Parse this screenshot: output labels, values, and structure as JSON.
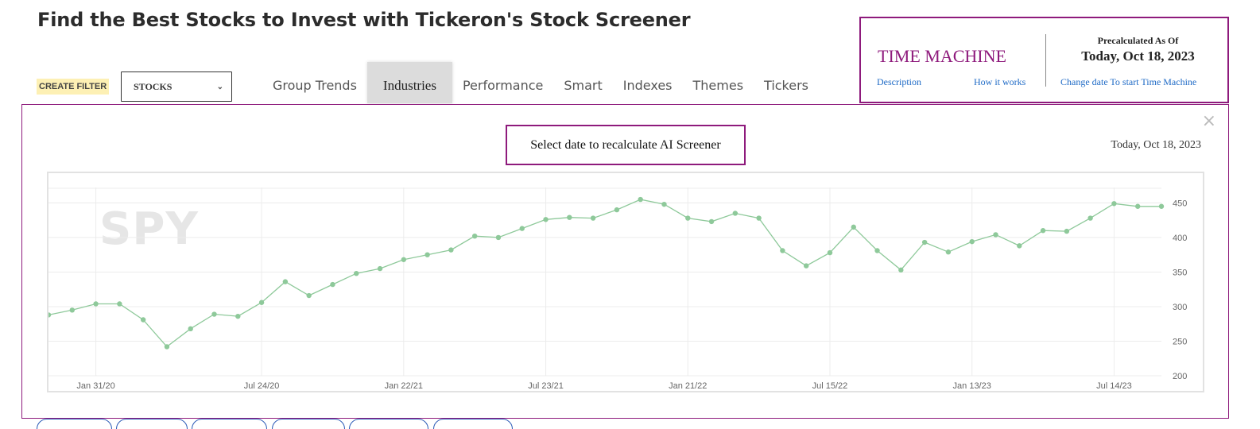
{
  "page": {
    "title": "Find the Best Stocks to Invest with Tickeron's Stock Screener"
  },
  "filter": {
    "create_label": "CREATE FILTER",
    "asset_type": "STOCKS",
    "chevron": "⌄"
  },
  "nav": {
    "tabs": [
      {
        "label": "Group Trends",
        "active": false
      },
      {
        "label": "Industries",
        "active": true
      },
      {
        "label": "Performance",
        "active": false
      },
      {
        "label": "Smart",
        "active": false
      },
      {
        "label": "Indexes",
        "active": false
      },
      {
        "label": "Themes",
        "active": false
      },
      {
        "label": "Tickers",
        "active": false
      }
    ]
  },
  "time_machine": {
    "title": "TIME MACHINE",
    "description_link": "Description",
    "how_link": "How it works",
    "precalc_label": "Precalculated As Of",
    "precalc_date": "Today, Oct 18, 2023",
    "change_date_link": "Change date To start Time Machine"
  },
  "chart_panel": {
    "prompt": "Select date to recalculate AI Screener",
    "current_date": "Today, Oct 18, 2023",
    "close_icon": "×"
  },
  "colors": {
    "accent": "#8e1a7c",
    "link": "#1e6ac6",
    "series": "#8ec99a"
  },
  "chart_data": {
    "type": "line",
    "watermark": "SPY",
    "ylim": [
      200,
      470
    ],
    "yticks": [
      200,
      250,
      300,
      350,
      400,
      450
    ],
    "xticks": [
      "Jan 31/20",
      "Jul 24/20",
      "Jan 22/21",
      "Jul 23/21",
      "Jan 21/22",
      "Jul 15/22",
      "Jan 13/23",
      "Jul 14/23"
    ],
    "xtick_index": [
      2,
      9,
      15,
      21,
      27,
      33,
      39,
      45
    ],
    "grid": true,
    "values": [
      288,
      295,
      304,
      304,
      281,
      242,
      268,
      289,
      286,
      306,
      336,
      316,
      332,
      348,
      355,
      368,
      375,
      382,
      402,
      400,
      413,
      426,
      429,
      428,
      440,
      455,
      448,
      428,
      423,
      435,
      428,
      381,
      359,
      378,
      415,
      381,
      353,
      393,
      379,
      394,
      404,
      388,
      410,
      409,
      428,
      449,
      445,
      445
    ]
  }
}
